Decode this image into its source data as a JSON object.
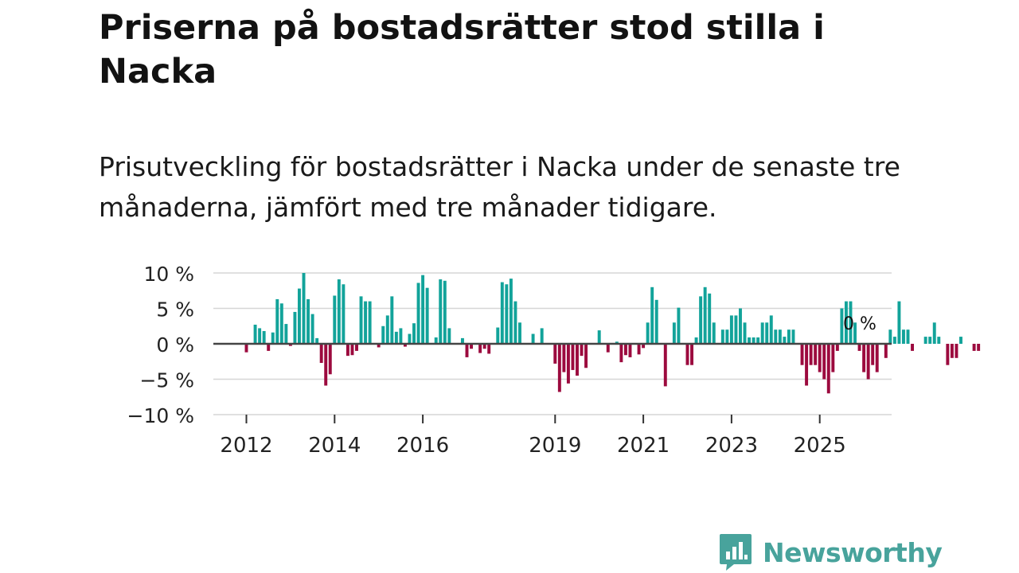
{
  "title": "Priserna på bostadsrätter stod stilla i Nacka",
  "subtitle": "Prisutveckling för bostadsrätter i Nacka under de senaste tre månaderna, jämfört med tre månader tidigare.",
  "logo": {
    "name": "Newsworthy"
  },
  "colors": {
    "positive": "#12a39a",
    "negative": "#9c0a3e",
    "zero_line": "#444444",
    "grid": "#d6d6d6"
  },
  "chart_data": {
    "type": "bar",
    "title": "Priserna på bostadsrätter stod stilla i Nacka",
    "xlabel": "",
    "ylabel": "",
    "ylim": [
      -10,
      10
    ],
    "y_ticks": [
      {
        "value": 10,
        "label": "10 %"
      },
      {
        "value": 5,
        "label": "5 %"
      },
      {
        "value": 0,
        "label": "0 %"
      },
      {
        "value": -5,
        "label": "−5 %"
      },
      {
        "value": -10,
        "label": "−10 %"
      }
    ],
    "x_ticks": [
      {
        "month_index": 0,
        "label": "2012"
      },
      {
        "month_index": 20,
        "label": "2014"
      },
      {
        "month_index": 40,
        "label": "2016"
      },
      {
        "month_index": 70,
        "label": "2019"
      },
      {
        "month_index": 90,
        "label": "2021"
      },
      {
        "month_index": 110,
        "label": "2023"
      },
      {
        "month_index": 130,
        "label": "2025"
      }
    ],
    "start_month_index": -0.5,
    "end_month_index": 146,
    "last_value_label": "0 %",
    "values": [
      -1.2,
      0,
      2.7,
      2.2,
      1.8,
      -1,
      1.6,
      6.3,
      5.7,
      2.8,
      -0.3,
      4.5,
      7.8,
      10,
      6.3,
      4.2,
      0.8,
      -2.7,
      -5.9,
      -4.3,
      6.8,
      9.1,
      8.4,
      -1.7,
      -1.6,
      -1,
      6.7,
      6,
      6,
      0,
      -0.5,
      2.5,
      4,
      6.7,
      1.7,
      2.2,
      -0.4,
      1.4,
      2.9,
      8.6,
      9.7,
      7.9,
      0,
      0.9,
      9.1,
      8.9,
      2.2,
      0,
      0,
      0.8,
      -1.9,
      -0.7,
      0,
      -1.3,
      -0.7,
      -1.4,
      0,
      2.3,
      8.7,
      8.4,
      9.2,
      6,
      3,
      0,
      0,
      1.4,
      0,
      2.2,
      0,
      0,
      -2.8,
      -6.8,
      -4,
      -5.6,
      -3.7,
      -4.5,
      -1.7,
      -3.4,
      0,
      0,
      1.9,
      0,
      -1.2,
      0,
      0.3,
      -2.6,
      -1.6,
      -1.9,
      0,
      -1.5,
      -0.6,
      3,
      8,
      6.2,
      0,
      -6,
      0,
      3,
      5.1,
      0,
      -3,
      -3,
      0.9,
      6.7,
      8,
      7.1,
      3,
      0,
      2,
      2,
      4,
      4,
      5,
      3,
      0.9,
      0.9,
      0.9,
      3,
      3,
      4,
      2,
      2,
      1,
      2,
      2,
      0,
      -3,
      -5.9,
      -3,
      -3,
      -4,
      -5,
      -7,
      -4,
      -1,
      5,
      6,
      6,
      3,
      -1,
      -4,
      -5,
      -3,
      -4,
      0,
      -2,
      2,
      1,
      6,
      2,
      2,
      -1,
      0,
      0,
      1,
      1,
      3,
      1,
      0,
      -3,
      -2,
      -2,
      1,
      0,
      0,
      -1,
      -1,
      0
    ]
  }
}
